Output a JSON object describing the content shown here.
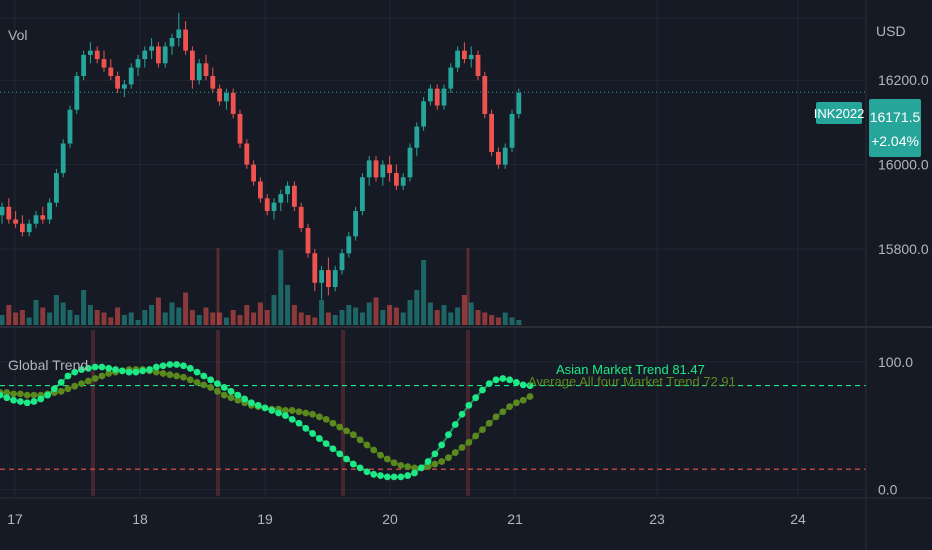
{
  "colors": {
    "background": "#161a25",
    "grid": "#232734",
    "separator": "#2a2e39",
    "text": "#b2b5be",
    "up": "#26a69a",
    "down": "#ef5350",
    "asian_line": "#1de986",
    "avg_line": "#5a8a1e",
    "price_badge": "#26a69a"
  },
  "header": {
    "volume_label": "Vol",
    "currency": "USD"
  },
  "price_badge": {
    "symbol": "INK2022",
    "price": "16171.5",
    "change": "+2.04%"
  },
  "indicator": {
    "title": "Global Trend",
    "asian_label": "Asian Market Trend 81.47",
    "avg_label": "Average All four Market Trend 72.91"
  },
  "chart_data": [
    {
      "type": "candlestick",
      "y_ticks": [
        "16200.0",
        "16000.0",
        "15800.0"
      ],
      "ylim": [
        15620,
        16390
      ],
      "last_price": 16171.5,
      "x_ticks": [
        "17",
        "18",
        "19",
        "20",
        "21",
        "23",
        "24"
      ],
      "candles": [
        [
          15880,
          15910,
          15860,
          15900
        ],
        [
          15900,
          15920,
          15860,
          15870
        ],
        [
          15870,
          15890,
          15850,
          15860
        ],
        [
          15860,
          15880,
          15830,
          15840
        ],
        [
          15840,
          15870,
          15830,
          15860
        ],
        [
          15860,
          15890,
          15850,
          15880
        ],
        [
          15880,
          15900,
          15860,
          15870
        ],
        [
          15870,
          15920,
          15860,
          15910
        ],
        [
          15910,
          15990,
          15900,
          15980
        ],
        [
          15980,
          16060,
          15970,
          16050
        ],
        [
          16050,
          16140,
          16040,
          16130
        ],
        [
          16130,
          16220,
          16120,
          16210
        ],
        [
          16210,
          16270,
          16200,
          16260
        ],
        [
          16260,
          16290,
          16240,
          16270
        ],
        [
          16270,
          16280,
          16240,
          16250
        ],
        [
          16250,
          16270,
          16220,
          16230
        ],
        [
          16230,
          16250,
          16200,
          16210
        ],
        [
          16210,
          16220,
          16170,
          16180
        ],
        [
          16180,
          16200,
          16160,
          16190
        ],
        [
          16190,
          16240,
          16180,
          16230
        ],
        [
          16230,
          16260,
          16210,
          16250
        ],
        [
          16250,
          16280,
          16230,
          16270
        ],
        [
          16270,
          16300,
          16250,
          16280
        ],
        [
          16280,
          16290,
          16230,
          16240
        ],
        [
          16240,
          16290,
          16230,
          16280
        ],
        [
          16280,
          16310,
          16260,
          16300
        ],
        [
          16300,
          16360,
          16280,
          16320
        ],
        [
          16320,
          16340,
          16260,
          16270
        ],
        [
          16270,
          16280,
          16180,
          16200
        ],
        [
          16200,
          16250,
          16190,
          16240
        ],
        [
          16240,
          16260,
          16200,
          16210
        ],
        [
          16210,
          16230,
          16170,
          16180
        ],
        [
          16180,
          16190,
          16140,
          16150
        ],
        [
          16150,
          16180,
          16130,
          16170
        ],
        [
          16170,
          16180,
          16110,
          16120
        ],
        [
          16120,
          16130,
          16040,
          16050
        ],
        [
          16050,
          16060,
          15990,
          16000
        ],
        [
          16000,
          16010,
          15950,
          15960
        ],
        [
          15960,
          15970,
          15910,
          15920
        ],
        [
          15920,
          15930,
          15880,
          15890
        ],
        [
          15890,
          15920,
          15870,
          15910
        ],
        [
          15910,
          15940,
          15890,
          15930
        ],
        [
          15930,
          15960,
          15910,
          15950
        ],
        [
          15950,
          15960,
          15890,
          15900
        ],
        [
          15900,
          15910,
          15840,
          15850
        ],
        [
          15850,
          15860,
          15780,
          15790
        ],
        [
          15790,
          15800,
          15700,
          15720
        ],
        [
          15720,
          15760,
          15680,
          15750
        ],
        [
          15750,
          15780,
          15690,
          15710
        ],
        [
          15710,
          15760,
          15700,
          15750
        ],
        [
          15750,
          15800,
          15740,
          15790
        ],
        [
          15790,
          15840,
          15780,
          15830
        ],
        [
          15830,
          15900,
          15820,
          15890
        ],
        [
          15890,
          15980,
          15880,
          15970
        ],
        [
          15970,
          16020,
          15950,
          16010
        ],
        [
          16010,
          16020,
          15960,
          15970
        ],
        [
          15970,
          16010,
          15950,
          16000
        ],
        [
          16000,
          16020,
          15960,
          15980
        ],
        [
          15980,
          16000,
          15940,
          15950
        ],
        [
          15950,
          15980,
          15940,
          15970
        ],
        [
          15970,
          16050,
          15960,
          16040
        ],
        [
          16040,
          16100,
          16020,
          16090
        ],
        [
          16090,
          16160,
          16080,
          16150
        ],
        [
          16150,
          16190,
          16140,
          16180
        ],
        [
          16180,
          16190,
          16130,
          16140
        ],
        [
          16140,
          16190,
          16130,
          16180
        ],
        [
          16180,
          16240,
          16170,
          16230
        ],
        [
          16230,
          16280,
          16220,
          16270
        ],
        [
          16270,
          16290,
          16240,
          16250
        ],
        [
          16250,
          16280,
          16230,
          16260
        ],
        [
          16260,
          16270,
          16200,
          16210
        ],
        [
          16210,
          16220,
          16110,
          16120
        ],
        [
          16120,
          16130,
          16020,
          16030
        ],
        [
          16030,
          16040,
          15990,
          16000
        ],
        [
          16000,
          16050,
          15990,
          16040
        ],
        [
          16040,
          16130,
          16030,
          16120
        ],
        [
          16120,
          16180,
          16110,
          16170
        ]
      ],
      "volumes": [
        4,
        8,
        5,
        6,
        3,
        10,
        7,
        5,
        12,
        9,
        6,
        4,
        14,
        8,
        6,
        5,
        3,
        7,
        4,
        5,
        2,
        6,
        8,
        11,
        5,
        9,
        7,
        13,
        6,
        4,
        7,
        5,
        5,
        3,
        6,
        4,
        8,
        5,
        9,
        6,
        12,
        30,
        16,
        8,
        5,
        4,
        3,
        10,
        5,
        4,
        6,
        8,
        7,
        5,
        9,
        11,
        6,
        8,
        7,
        5,
        10,
        14,
        26,
        9,
        6,
        8,
        5,
        7,
        12,
        9,
        6,
        5,
        4,
        3,
        5,
        3,
        2
      ]
    },
    {
      "type": "line",
      "title": "Global Trend",
      "y_ticks": [
        "100.0",
        "0.0"
      ],
      "ylim": [
        -5,
        125
      ],
      "reference_lines": [
        {
          "value": 81.47,
          "color": "#1de986"
        },
        {
          "value": 16,
          "color": "#ef5350"
        }
      ],
      "series": [
        {
          "name": "Asian Market Trend",
          "values": [
            74,
            72,
            70,
            69,
            68,
            69,
            71,
            74,
            79,
            84,
            89,
            92,
            94,
            95,
            96,
            96,
            95,
            94,
            93,
            92,
            92,
            93,
            94,
            96,
            97,
            98,
            98,
            97,
            95,
            92,
            89,
            86,
            83,
            80,
            77,
            74,
            71,
            68,
            66,
            64,
            62,
            60,
            58,
            55,
            52,
            48,
            44,
            40,
            36,
            32,
            28,
            24,
            20,
            17,
            14,
            12,
            11,
            10,
            10,
            10,
            11,
            13,
            17,
            22,
            28,
            35,
            43,
            51,
            59,
            66,
            72,
            78,
            83,
            86,
            87,
            86,
            84,
            82,
            81.47
          ]
        },
        {
          "name": "Average All four Market Trend",
          "values": [
            76,
            76,
            75,
            75,
            74,
            74,
            74,
            75,
            76,
            77,
            79,
            81,
            83,
            85,
            87,
            89,
            91,
            92,
            93,
            94,
            94,
            94,
            93,
            92,
            91,
            90,
            89,
            88,
            86,
            84,
            82,
            80,
            77,
            74,
            72,
            70,
            68,
            66,
            65,
            64,
            63,
            63,
            62,
            62,
            61,
            60,
            59,
            57,
            55,
            52,
            49,
            46,
            43,
            39,
            35,
            31,
            27,
            24,
            21,
            19,
            18,
            17,
            17,
            18,
            20,
            22,
            25,
            29,
            33,
            37,
            42,
            47,
            52,
            57,
            61,
            65,
            68,
            70,
            72.91
          ]
        }
      ],
      "event_markers": [
        1,
        2,
        3,
        4,
        5
      ]
    }
  ]
}
